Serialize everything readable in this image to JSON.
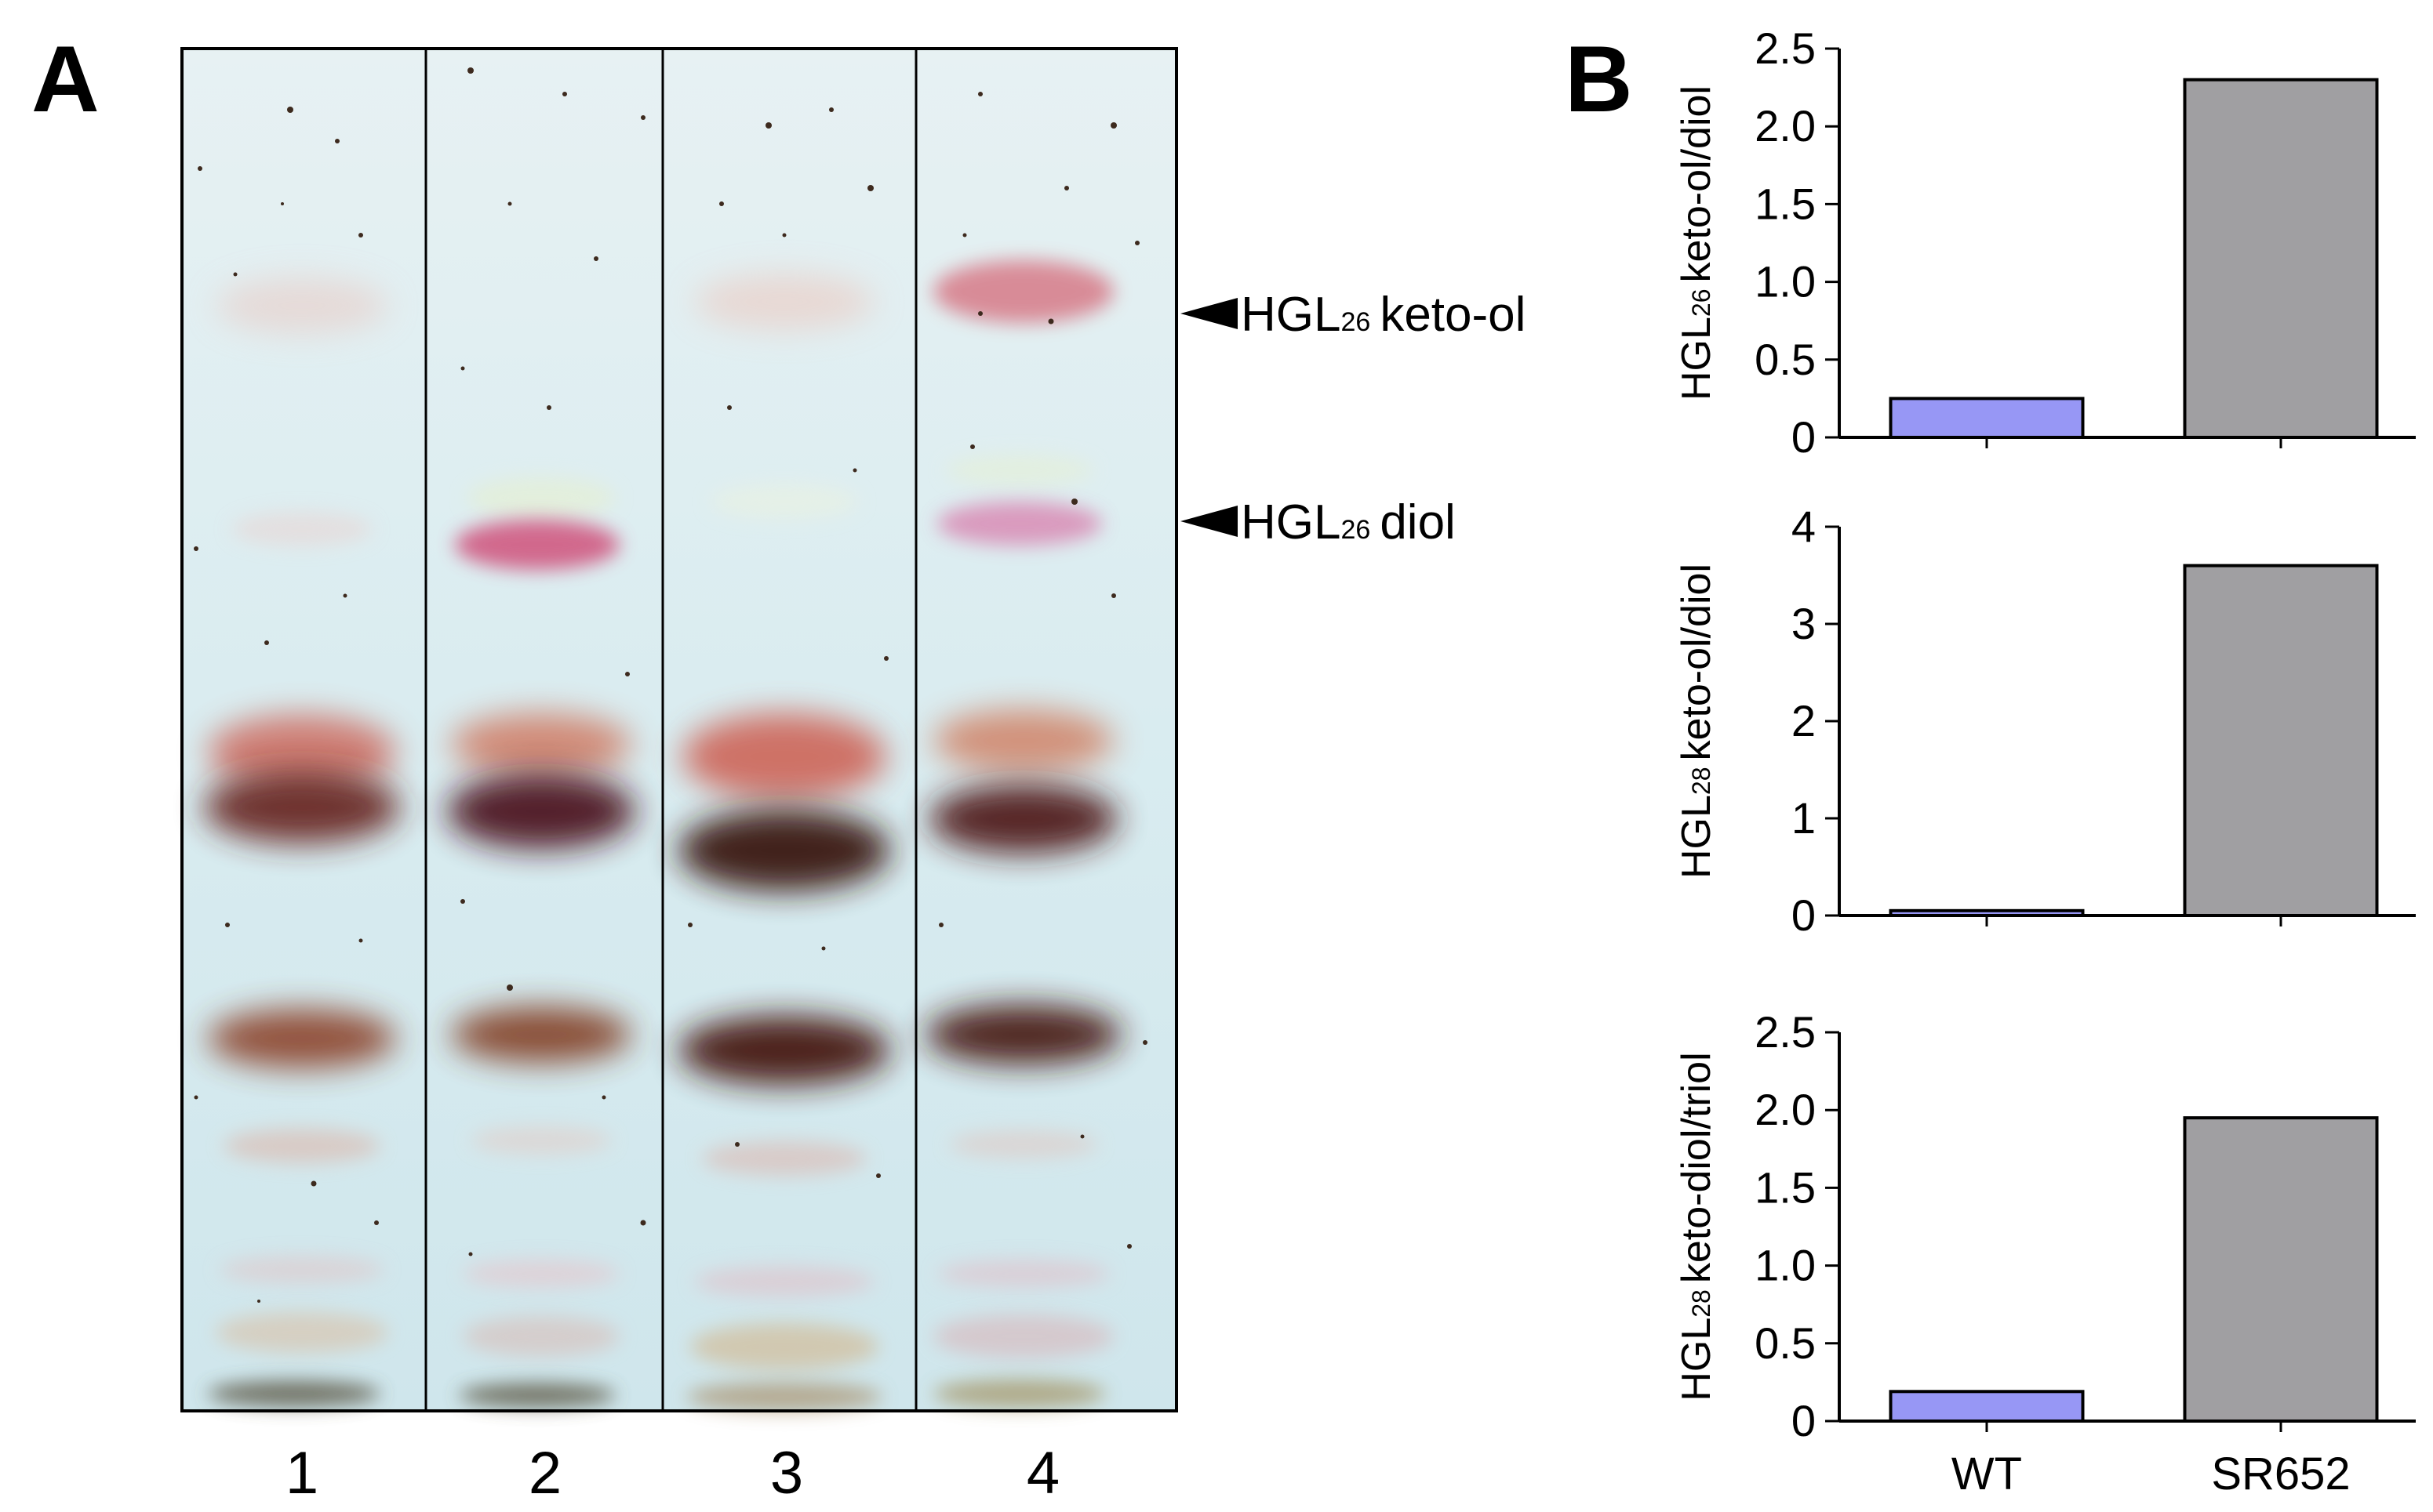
{
  "panels": {
    "a_label": "A",
    "b_label": "B"
  },
  "tlc": {
    "lanes": [
      "1",
      "2",
      "3",
      "4"
    ],
    "labels": [
      {
        "prefix": "HGL",
        "sub": "26",
        "suffix": "keto-ol"
      },
      {
        "prefix": "HGL",
        "sub": "26",
        "suffix": "diol"
      }
    ]
  },
  "chart_data": [
    {
      "type": "bar",
      "categories": [
        "WT",
        "SR652"
      ],
      "values": [
        0.25,
        2.3
      ],
      "ylabel": {
        "prefix": "HGL",
        "sub": "26",
        "suffix": "keto-ol/diol"
      },
      "ylim": [
        0,
        2.5
      ],
      "ticks": [
        0,
        0.5,
        1.0,
        1.5,
        2.0,
        2.5
      ],
      "tick_labels": [
        "0",
        "0.5",
        "1.0",
        "1.5",
        "2.0",
        "2.5"
      ],
      "colors": [
        "#9797f5",
        "#a09fa2"
      ]
    },
    {
      "type": "bar",
      "categories": [
        "WT",
        "SR652"
      ],
      "values": [
        0.05,
        3.6
      ],
      "ylabel": {
        "prefix": "HGL",
        "sub": "28",
        "suffix": "keto-ol/diol"
      },
      "ylim": [
        0,
        4
      ],
      "ticks": [
        0,
        1,
        2,
        3,
        4
      ],
      "tick_labels": [
        "0",
        "1",
        "2",
        "3",
        "4"
      ],
      "colors": [
        "#9797f5",
        "#a09fa2"
      ]
    },
    {
      "type": "bar",
      "categories": [
        "WT",
        "SR652"
      ],
      "values": [
        0.19,
        1.95
      ],
      "ylabel": {
        "prefix": "HGL",
        "sub": "28",
        "suffix": "keto-diol/triol"
      },
      "ylim": [
        0,
        2.5
      ],
      "ticks": [
        0,
        0.5,
        1.0,
        1.5,
        2.0,
        2.5
      ],
      "tick_labels": [
        "0",
        "0.5",
        "1.0",
        "1.5",
        "2.0",
        "2.5"
      ],
      "colors": [
        "#9797f5",
        "#a09fa2"
      ]
    }
  ],
  "x_axis": {
    "categories": [
      "WT",
      "SR652"
    ]
  }
}
